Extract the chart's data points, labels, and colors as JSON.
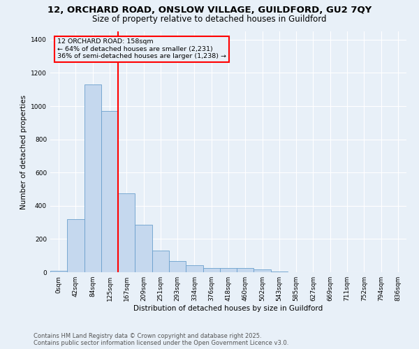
{
  "title_line1": "12, ORCHARD ROAD, ONSLOW VILLAGE, GUILDFORD, GU2 7QY",
  "title_line2": "Size of property relative to detached houses in Guildford",
  "bar_labels": [
    "0sqm",
    "42sqm",
    "84sqm",
    "125sqm",
    "167sqm",
    "209sqm",
    "251sqm",
    "293sqm",
    "334sqm",
    "376sqm",
    "418sqm",
    "460sqm",
    "502sqm",
    "543sqm",
    "585sqm",
    "627sqm",
    "669sqm",
    "711sqm",
    "752sqm",
    "794sqm",
    "836sqm"
  ],
  "bar_values": [
    10,
    320,
    1130,
    970,
    475,
    285,
    130,
    68,
    42,
    25,
    27,
    27,
    18,
    4,
    2,
    1,
    1,
    0,
    0,
    0,
    0
  ],
  "bar_color": "#c5d8ee",
  "bar_edge_color": "#6a9fcc",
  "vline_color": "red",
  "vline_x": 3.5,
  "annotation_title": "12 ORCHARD ROAD: 158sqm",
  "annotation_line1": "← 64% of detached houses are smaller (2,231)",
  "annotation_line2": "36% of semi-detached houses are larger (1,238) →",
  "annotation_box_color": "red",
  "ylabel": "Number of detached properties",
  "xlabel": "Distribution of detached houses by size in Guildford",
  "ylim": [
    0,
    1450
  ],
  "yticks": [
    0,
    200,
    400,
    600,
    800,
    1000,
    1200,
    1400
  ],
  "footer_line1": "Contains HM Land Registry data © Crown copyright and database right 2025.",
  "footer_line2": "Contains public sector information licensed under the Open Government Licence v3.0.",
  "bg_color": "#e8f0f8",
  "grid_color": "#ffffff",
  "title_fontsize": 9.5,
  "subtitle_fontsize": 8.5,
  "axis_label_fontsize": 7.5,
  "tick_fontsize": 6.5,
  "footer_fontsize": 6.0,
  "ann_fontsize": 6.8
}
